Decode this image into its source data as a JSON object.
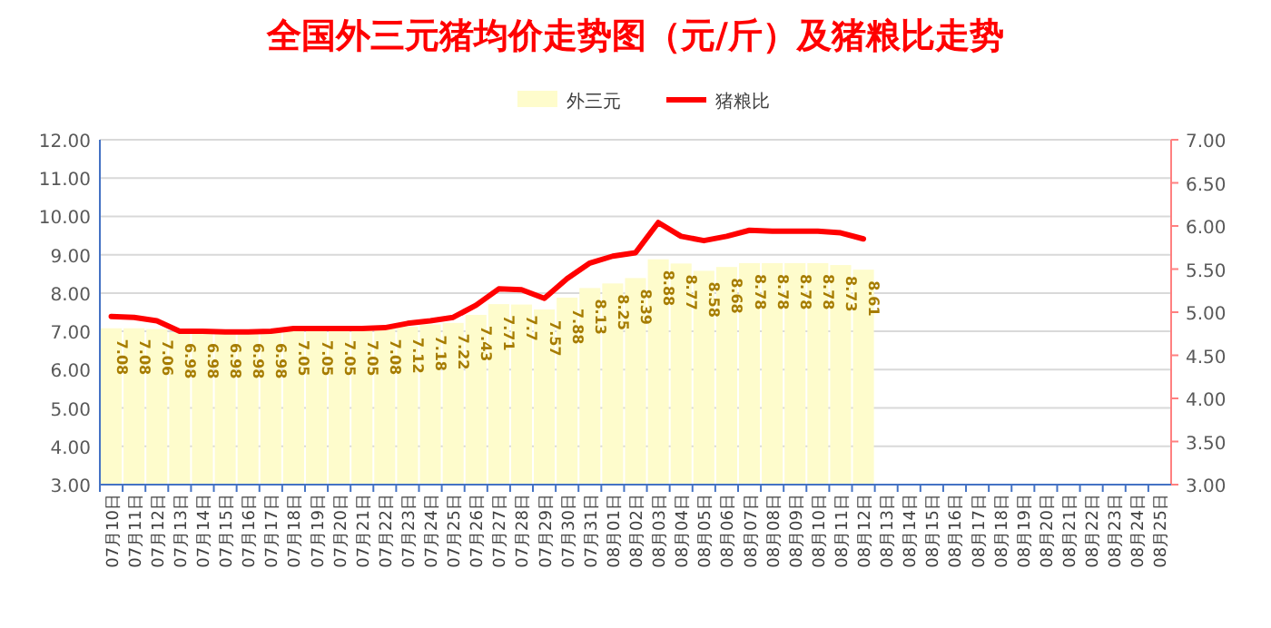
{
  "chart_data": {
    "type": "bar",
    "title": "全国外三元猪均价走势图（元/斤）及猪粮比走势",
    "categories": [
      "07月10日",
      "07月11日",
      "07月12日",
      "07月13日",
      "07月14日",
      "07月15日",
      "07月16日",
      "07月17日",
      "07月18日",
      "07月19日",
      "07月20日",
      "07月21日",
      "07月22日",
      "07月23日",
      "07月24日",
      "07月25日",
      "07月26日",
      "07月27日",
      "07月28日",
      "07月29日",
      "07月30日",
      "07月31日",
      "08月01日",
      "08月02日",
      "08月03日",
      "08月04日",
      "08月05日",
      "08月06日",
      "08月07日",
      "08月08日",
      "08月09日",
      "08月10日",
      "08月11日",
      "08月12日",
      "08月13日",
      "08月14日",
      "08月15日",
      "08月16日",
      "08月17日",
      "08月18日",
      "08月19日",
      "08月20日",
      "08月21日",
      "08月22日",
      "08月23日",
      "08月24日",
      "08月25日"
    ],
    "series": [
      {
        "name": "外三元",
        "color": "#fefccc",
        "values": [
          7.08,
          7.08,
          7.06,
          6.98,
          6.98,
          6.98,
          6.98,
          6.98,
          7.05,
          7.05,
          7.05,
          7.05,
          7.08,
          7.12,
          7.18,
          7.22,
          7.43,
          7.71,
          7.7,
          7.57,
          7.88,
          8.13,
          8.25,
          8.39,
          8.88,
          8.77,
          8.58,
          8.68,
          8.78,
          8.78,
          8.78,
          8.78,
          8.73,
          8.61,
          null,
          null,
          null,
          null,
          null,
          null,
          null,
          null,
          null,
          null,
          null,
          null,
          null
        ],
        "value_labels": [
          "7.08",
          "7.08",
          "7.06",
          "6.98",
          "6.98",
          "6.98",
          "6.98",
          "6.98",
          "7.05",
          "7.05",
          "7.05",
          "7.05",
          "7.08",
          "7.12",
          "7.18",
          "7.22",
          "7.43",
          "7.71",
          "7.7",
          "7.57",
          "7.88",
          "8.13",
          "8.25",
          "8.39",
          "8.88",
          "8.77",
          "8.58",
          "8.68",
          "8.78",
          "8.78",
          "8.78",
          "8.78",
          "8.73",
          "8.61",
          null,
          null,
          null,
          null,
          null,
          null,
          null,
          null,
          null,
          null,
          null,
          null,
          null
        ]
      },
      {
        "name": "猪粮比",
        "type": "line",
        "axis": "y2",
        "color": "#ff0000",
        "values": [
          4.95,
          4.94,
          4.9,
          4.78,
          4.78,
          4.77,
          4.77,
          4.78,
          4.81,
          4.81,
          4.81,
          4.81,
          4.82,
          4.87,
          4.9,
          4.94,
          5.08,
          5.27,
          5.26,
          5.16,
          5.39,
          5.57,
          5.65,
          5.69,
          6.04,
          5.88,
          5.83,
          5.88,
          5.95,
          5.94,
          5.94,
          5.94,
          5.92,
          5.85,
          null,
          null,
          null,
          null,
          null,
          null,
          null,
          null,
          null,
          null,
          null,
          null,
          null
        ]
      }
    ],
    "ylim": [
      3,
      12
    ],
    "yticks": [
      {
        "value": 3,
        "label": "3.00"
      },
      {
        "value": 4,
        "label": "4.00"
      },
      {
        "value": 5,
        "label": "5.00"
      },
      {
        "value": 6,
        "label": "6.00"
      },
      {
        "value": 7,
        "label": "7.00"
      },
      {
        "value": 8,
        "label": "8.00"
      },
      {
        "value": 9,
        "label": "9.00"
      },
      {
        "value": 10,
        "label": "10.00"
      },
      {
        "value": 11,
        "label": "11.00"
      },
      {
        "value": 12,
        "label": "12.00"
      }
    ],
    "y2lim": [
      3,
      7
    ],
    "y2ticks": [
      {
        "value": 3,
        "label": "3.00"
      },
      {
        "value": 3.5,
        "label": "3.50"
      },
      {
        "value": 4,
        "label": "4.00"
      },
      {
        "value": 4.5,
        "label": "4.50"
      },
      {
        "value": 5,
        "label": "5.00"
      },
      {
        "value": 5.5,
        "label": "5.50"
      },
      {
        "value": 6,
        "label": "6.00"
      },
      {
        "value": 6.5,
        "label": "6.50"
      },
      {
        "value": 7,
        "label": "7.00"
      }
    ],
    "grid": "y",
    "legend": "top"
  }
}
